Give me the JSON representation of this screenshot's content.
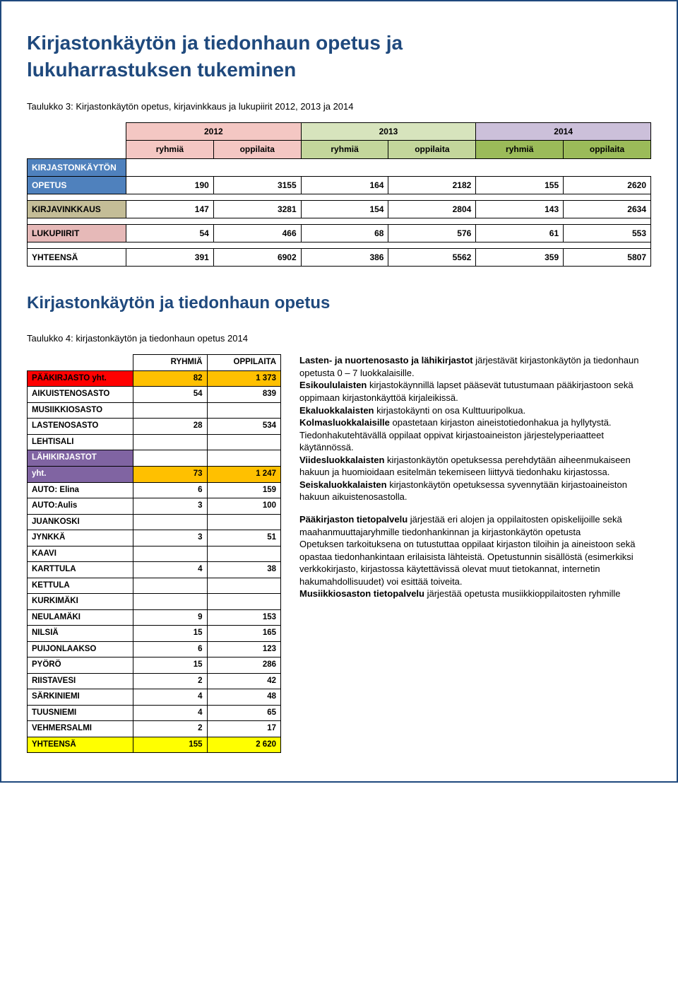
{
  "header": {
    "title_line1": "Kirjastonkäytön ja tiedonhaun opetus ja",
    "title_line2": "lukuharrastuksen tukeminen"
  },
  "table3": {
    "caption": "Taulukko 3: Kirjastonkäytön opetus, kirjavinkkaus ja lukupiirit 2012, 2013 ja 2014",
    "year_headers": [
      "2012",
      "2013",
      "2014"
    ],
    "sub_headers": [
      "ryhmiä",
      "oppilaita",
      "ryhmiä",
      "oppilaita",
      "ryhmiä",
      "oppilaita"
    ],
    "rows": [
      {
        "label_top": "KIRJASTONKÄYTÖN",
        "label": "OPETUS",
        "bg": "bg-blue",
        "vals": [
          "190",
          "3155",
          "164",
          "2182",
          "155",
          "2620"
        ]
      },
      {
        "label": "KIRJAVINKKAUS",
        "bg": "bg-tan",
        "vals": [
          "147",
          "3281",
          "154",
          "2804",
          "143",
          "2634"
        ]
      },
      {
        "label": "LUKUPIIRIT",
        "bg": "bg-rose",
        "vals": [
          "54",
          "466",
          "68",
          "576",
          "61",
          "553"
        ]
      },
      {
        "label": "YHTEENSÄ",
        "bg": "",
        "vals": [
          "391",
          "6902",
          "386",
          "5562",
          "359",
          "5807"
        ]
      }
    ]
  },
  "section2": {
    "title": "Kirjastonkäytön ja tiedonhaun opetus",
    "caption": "Taulukko 4: kirjastonkäytön ja tiedonhaun opetus 2014"
  },
  "table4": {
    "headers": [
      "RYHMIÄ",
      "OPPILAITA"
    ],
    "rows": [
      {
        "label": "PÄÄKIRJASTO yht.",
        "bg": "bg-red",
        "v1": "82",
        "v2": "1 373",
        "vbg": "bg-orange"
      },
      {
        "label": "AIKUISTENOSASTO",
        "bg": "",
        "v1": "54",
        "v2": "839"
      },
      {
        "label": "MUSIIKKIOSASTO",
        "bg": "",
        "v1": "",
        "v2": ""
      },
      {
        "label": "LASTENOSASTO",
        "bg": "",
        "v1": "28",
        "v2": "534"
      },
      {
        "label": "LEHTISALI",
        "bg": "",
        "v1": "",
        "v2": ""
      },
      {
        "label": "LÄHIKIRJASTOT",
        "bg": "bg-violet",
        "half": true
      },
      {
        "label": "yht.",
        "bg": "bg-violet",
        "v1": "73",
        "v2": "1 247",
        "vbg": "bg-orange"
      },
      {
        "label": "AUTO: Elina",
        "bg": "",
        "v1": "6",
        "v2": "159"
      },
      {
        "label": "AUTO:Aulis",
        "bg": "",
        "v1": "3",
        "v2": "100"
      },
      {
        "label": "JUANKOSKI",
        "bg": "",
        "v1": "",
        "v2": ""
      },
      {
        "label": "JYNKKÄ",
        "bg": "",
        "v1": "3",
        "v2": "51"
      },
      {
        "label": "KAAVI",
        "bg": "",
        "v1": "",
        "v2": ""
      },
      {
        "label": "KARTTULA",
        "bg": "",
        "v1": "4",
        "v2": "38"
      },
      {
        "label": "KETTULA",
        "bg": "",
        "v1": "",
        "v2": ""
      },
      {
        "label": "KURKIMÄKI",
        "bg": "",
        "v1": "",
        "v2": ""
      },
      {
        "label": "NEULAMÄKI",
        "bg": "",
        "v1": "9",
        "v2": "153"
      },
      {
        "label": "NILSIÄ",
        "bg": "",
        "v1": "15",
        "v2": "165"
      },
      {
        "label": "PUIJONLAAKSO",
        "bg": "",
        "v1": "6",
        "v2": "123"
      },
      {
        "label": "PYÖRÖ",
        "bg": "",
        "v1": "15",
        "v2": "286"
      },
      {
        "label": "RIISTAVESI",
        "bg": "",
        "v1": "2",
        "v2": "42"
      },
      {
        "label": "SÄRKINIEMI",
        "bg": "",
        "v1": "4",
        "v2": "48"
      },
      {
        "label": "TUUSNIEMI",
        "bg": "",
        "v1": "4",
        "v2": "65"
      },
      {
        "label": "VEHMERSALMI",
        "bg": "",
        "v1": "2",
        "v2": "17"
      },
      {
        "label": "YHTEENSÄ",
        "bg": "bg-yellow",
        "v1": "155",
        "v2": "2 620",
        "vbg": "bg-yellow"
      }
    ]
  },
  "body_text": {
    "p1_lead_b": "Lasten- ja nuortenosasto ja lähikirjastot",
    "p1_rest": " järjestävät kirjastonkäytön ja tiedonhaun opetusta 0 – 7 luokkalaisille.",
    "p1_b2": "Esikoululaisten",
    "p1_t2": " kirjastokäynnillä lapset pääsevät tutustumaan pääkirjastoon sekä oppimaan kirjastonkäyttöä kirjaleikissä.",
    "p1_b3": "Ekaluokkalaisten",
    "p1_t3": " kirjastokäynti on osa Kulttuuripolkua.",
    "p1_b4": "Kolmasluokkalaisille",
    "p1_t4": " opastetaan kirjaston aineistotiedonhakua ja hyllytystä. Tiedonhakutehtävällä oppilaat oppivat kirjastoaineiston järjestelyperiaatteet käytännössä.",
    "p1_b5": "Viidesluokkalaisten",
    "p1_t5": " kirjastonkäytön opetuksessa perehdytään aiheenmukaiseen hakuun ja huomioidaan esitelmän tekemiseen liittyvä tiedonhaku kirjastossa.",
    "p1_b6": "Seiskaluokkalaisten",
    "p1_t6": " kirjastonkäytön opetuksessa syvennytään kirjastoaineiston hakuun aikuistenosastolla.",
    "p2_b1": "Pääkirjaston tietopalvelu",
    "p2_t1": " järjestää eri alojen ja oppilaitosten opiskelijoille sekä maahanmuuttajaryhmille tiedonhankinnan ja kirjastonkäytön opetusta",
    "p2_t2": "Opetuksen tarkoituksena on tutustuttaa oppilaat kirjaston tiloihin ja aineistoon sekä opastaa tiedonhankintaan erilaisista lähteistä. Opetustunnin sisällöstä (esimerkiksi verkkokirjasto, kirjastossa käytettävissä olevat muut tietokannat, internetin hakumahdollisuudet) voi esittää toiveita.",
    "p2_b2": "Musiikkiosaston tietopalvelu",
    "p2_t3": " järjestää opetusta musiikkioppilaitosten ryhmille"
  },
  "colors": {
    "border": "#1f497d",
    "title": "#1f497d"
  }
}
